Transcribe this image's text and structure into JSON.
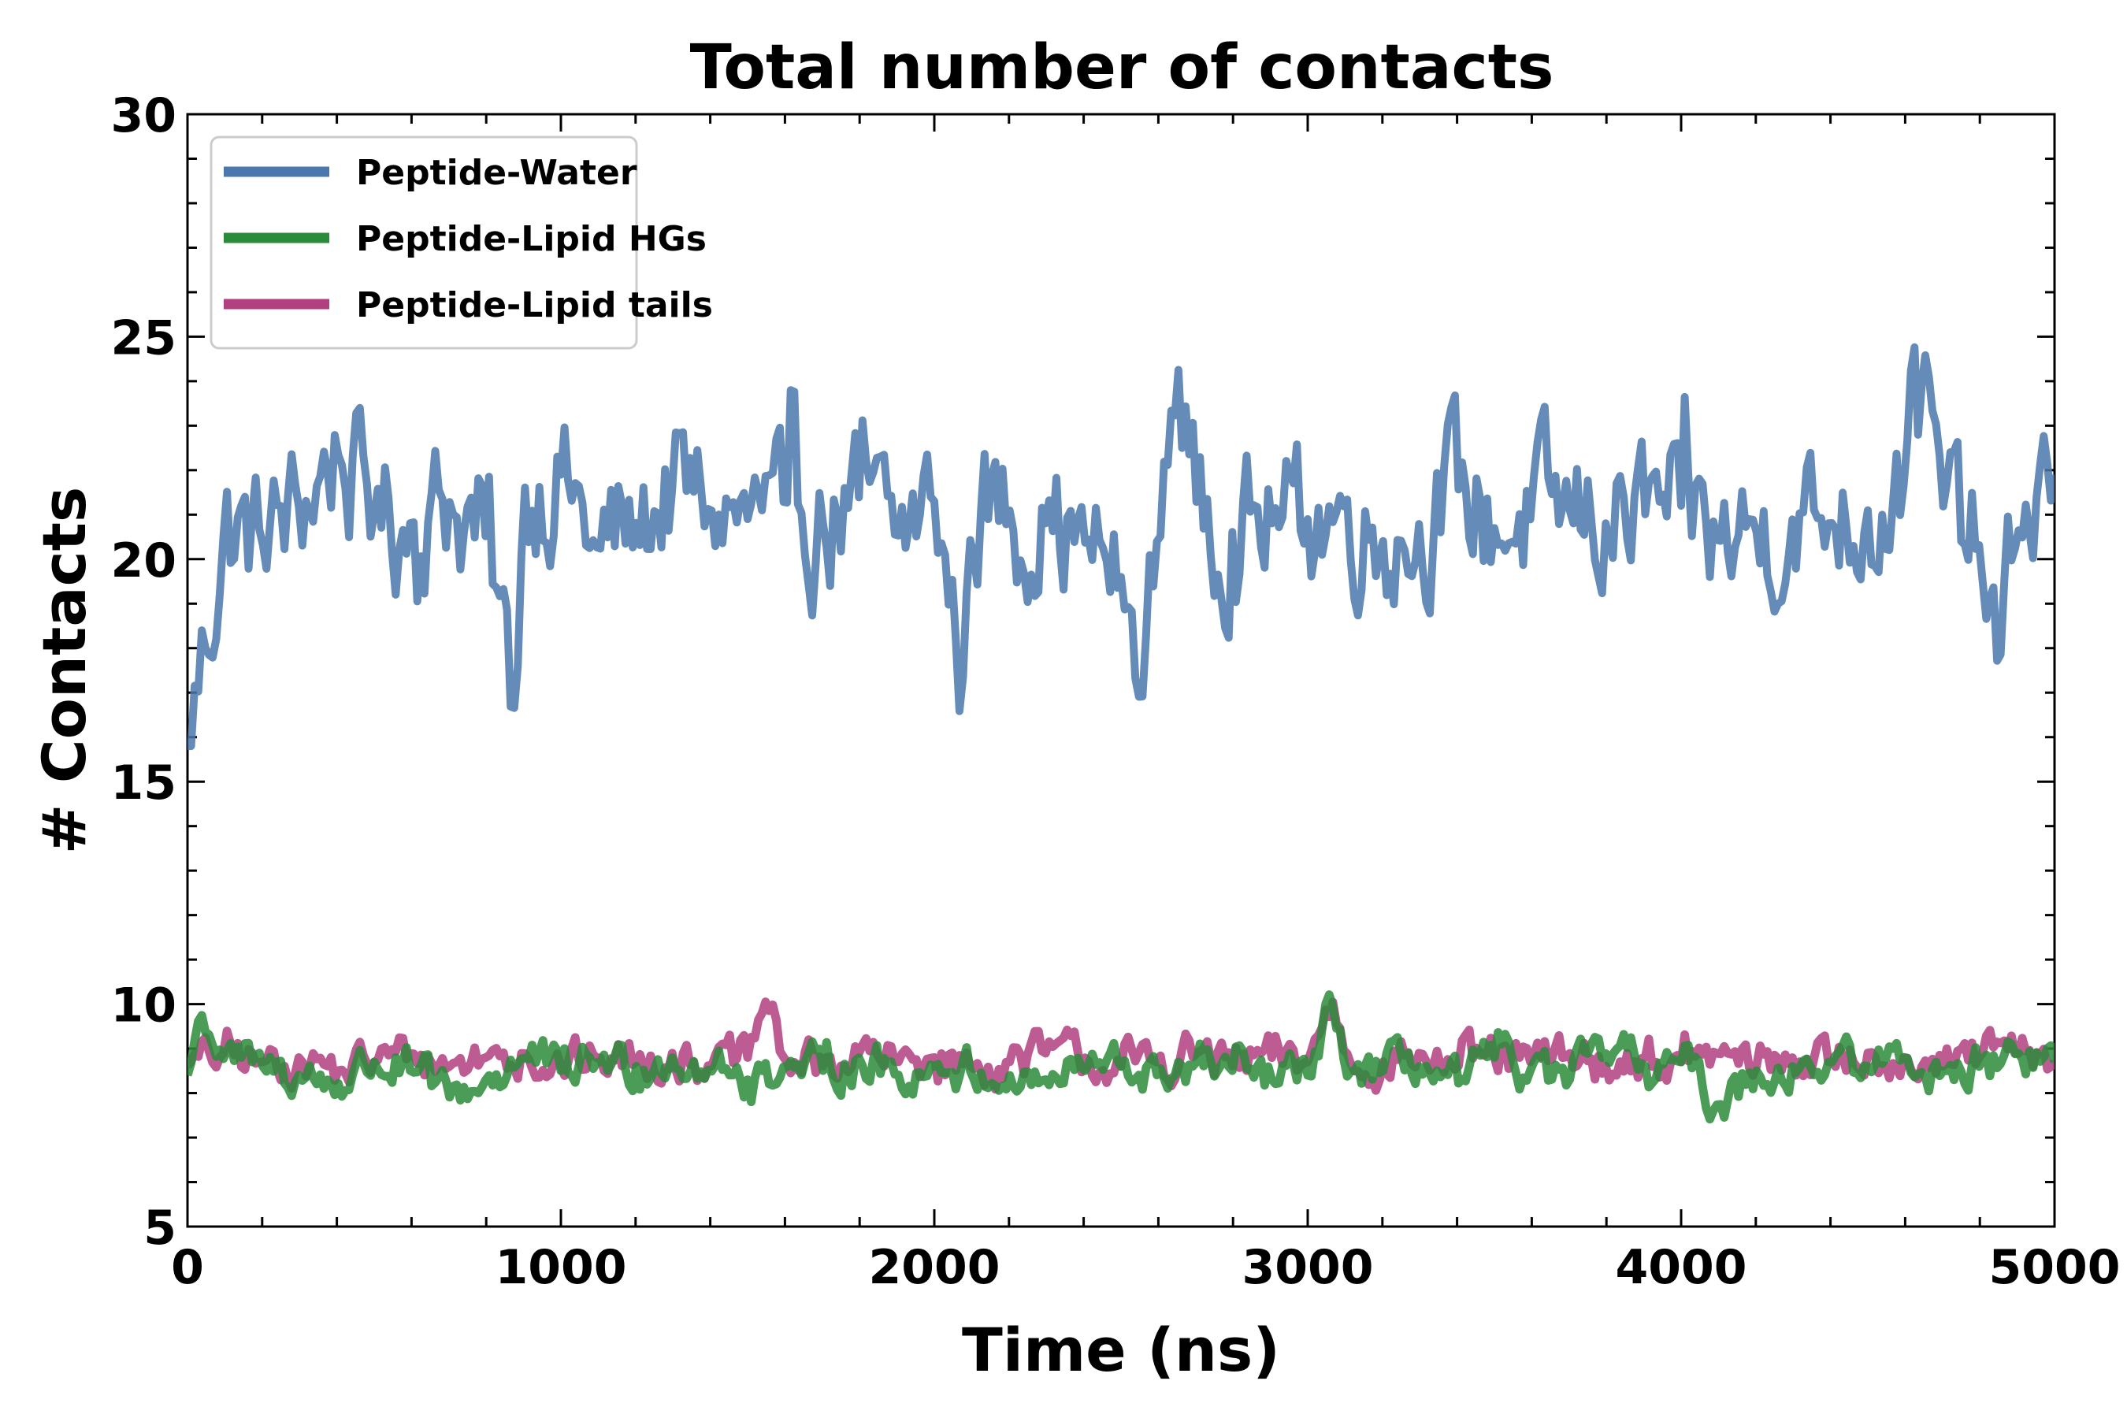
{
  "chart_data": {
    "type": "line",
    "title": "Total number of contacts",
    "xlabel": "Time (ns)",
    "ylabel": "# Contacts",
    "xlim": [
      0,
      5000
    ],
    "ylim": [
      5,
      30
    ],
    "xticks": [
      0,
      1000,
      2000,
      3000,
      4000,
      5000
    ],
    "yticks": [
      5,
      10,
      15,
      20,
      25,
      30
    ],
    "legend_position": "top-left",
    "grid": false,
    "series": [
      {
        "name": "Peptide-Water",
        "color": "#4a78ad",
        "draw_order": 1,
        "x": [
          0,
          100,
          200,
          300,
          400,
          500,
          600,
          700,
          800,
          880,
          900,
          1000,
          1100,
          1200,
          1300,
          1400,
          1500,
          1600,
          1700,
          1800,
          1900,
          2000,
          2080,
          2100,
          2200,
          2300,
          2400,
          2500,
          2550,
          2600,
          2650,
          2700,
          2800,
          2900,
          3000,
          3100,
          3200,
          3300,
          3400,
          3500,
          3600,
          3700,
          3800,
          3900,
          4000,
          4100,
          4200,
          4300,
          4400,
          4500,
          4600,
          4620,
          4700,
          4800,
          4850,
          4900,
          5000
        ],
        "values": [
          15.8,
          20.7,
          20.3,
          21.2,
          22.4,
          21.0,
          20.8,
          21.3,
          20.5,
          16.4,
          21.6,
          21.9,
          20.2,
          20.8,
          21.6,
          21.1,
          20.9,
          21.3,
          20.8,
          21.4,
          20.5,
          21.3,
          17.2,
          21.2,
          21.1,
          20.8,
          20.4,
          19.6,
          16.8,
          20.7,
          24.5,
          21.3,
          20.6,
          20.8,
          20.9,
          21.2,
          20.4,
          20.8,
          21.6,
          20.7,
          20.9,
          21.1,
          20.8,
          21.0,
          21.2,
          20.4,
          20.6,
          20.9,
          20.8,
          21.1,
          21.7,
          25.0,
          21.2,
          20.3,
          17.5,
          20.6,
          21.9
        ]
      },
      {
        "name": "Peptide-Lipid tails",
        "color": "#b24080",
        "draw_order": 2,
        "x": [
          0,
          100,
          200,
          300,
          400,
          500,
          600,
          700,
          800,
          900,
          1000,
          1100,
          1200,
          1300,
          1400,
          1500,
          1550,
          1600,
          1700,
          1800,
          1900,
          2000,
          2100,
          2200,
          2300,
          2400,
          2500,
          2600,
          2700,
          2800,
          2900,
          3000,
          3070,
          3100,
          3200,
          3300,
          3400,
          3500,
          3600,
          3700,
          3800,
          3900,
          4000,
          4100,
          4200,
          4300,
          4400,
          4500,
          4600,
          4700,
          4800,
          4900,
          5000
        ],
        "values": [
          8.6,
          8.9,
          8.7,
          8.8,
          8.5,
          8.7,
          8.9,
          8.6,
          8.8,
          8.9,
          8.6,
          8.8,
          8.7,
          8.9,
          8.6,
          8.8,
          10.1,
          8.7,
          8.6,
          8.9,
          8.7,
          8.8,
          8.6,
          8.7,
          8.9,
          8.8,
          8.6,
          8.7,
          8.9,
          8.6,
          8.8,
          8.7,
          10.1,
          8.8,
          8.7,
          8.9,
          8.6,
          8.8,
          8.7,
          8.9,
          8.6,
          8.8,
          8.7,
          8.9,
          8.6,
          8.8,
          8.7,
          8.9,
          8.8,
          8.6,
          8.8,
          8.9,
          8.7
        ]
      },
      {
        "name": "Peptide-Lipid HGs",
        "color": "#2a8b3a",
        "draw_order": 3,
        "x": [
          0,
          40,
          100,
          200,
          300,
          400,
          500,
          600,
          700,
          800,
          900,
          1000,
          1100,
          1200,
          1300,
          1400,
          1500,
          1600,
          1700,
          1800,
          1900,
          2000,
          2100,
          2200,
          2300,
          2400,
          2500,
          2600,
          2700,
          2800,
          2900,
          3000,
          3070,
          3100,
          3200,
          3300,
          3400,
          3500,
          3600,
          3700,
          3800,
          3900,
          4000,
          4100,
          4200,
          4300,
          4400,
          4500,
          4600,
          4700,
          4800,
          4900,
          5000
        ],
        "values": [
          8.4,
          9.8,
          8.7,
          8.6,
          8.4,
          8.2,
          8.7,
          8.5,
          7.9,
          8.3,
          8.8,
          8.5,
          8.7,
          8.6,
          8.8,
          8.5,
          8.3,
          8.6,
          8.5,
          8.8,
          8.4,
          8.6,
          8.5,
          8.4,
          8.3,
          8.5,
          8.6,
          8.4,
          8.7,
          8.5,
          8.3,
          8.4,
          10.0,
          8.6,
          8.5,
          8.6,
          8.2,
          8.8,
          8.5,
          8.3,
          8.9,
          8.6,
          8.7,
          7.7,
          8.5,
          8.6,
          8.7,
          8.6,
          8.8,
          8.5,
          8.6,
          8.9,
          8.7
        ]
      }
    ],
    "legend": [
      {
        "label": "Peptide-Water",
        "color": "#4a78ad"
      },
      {
        "label": "Peptide-Lipid HGs",
        "color": "#2a8b3a"
      },
      {
        "label": "Peptide-Lipid tails",
        "color": "#b24080"
      }
    ]
  }
}
